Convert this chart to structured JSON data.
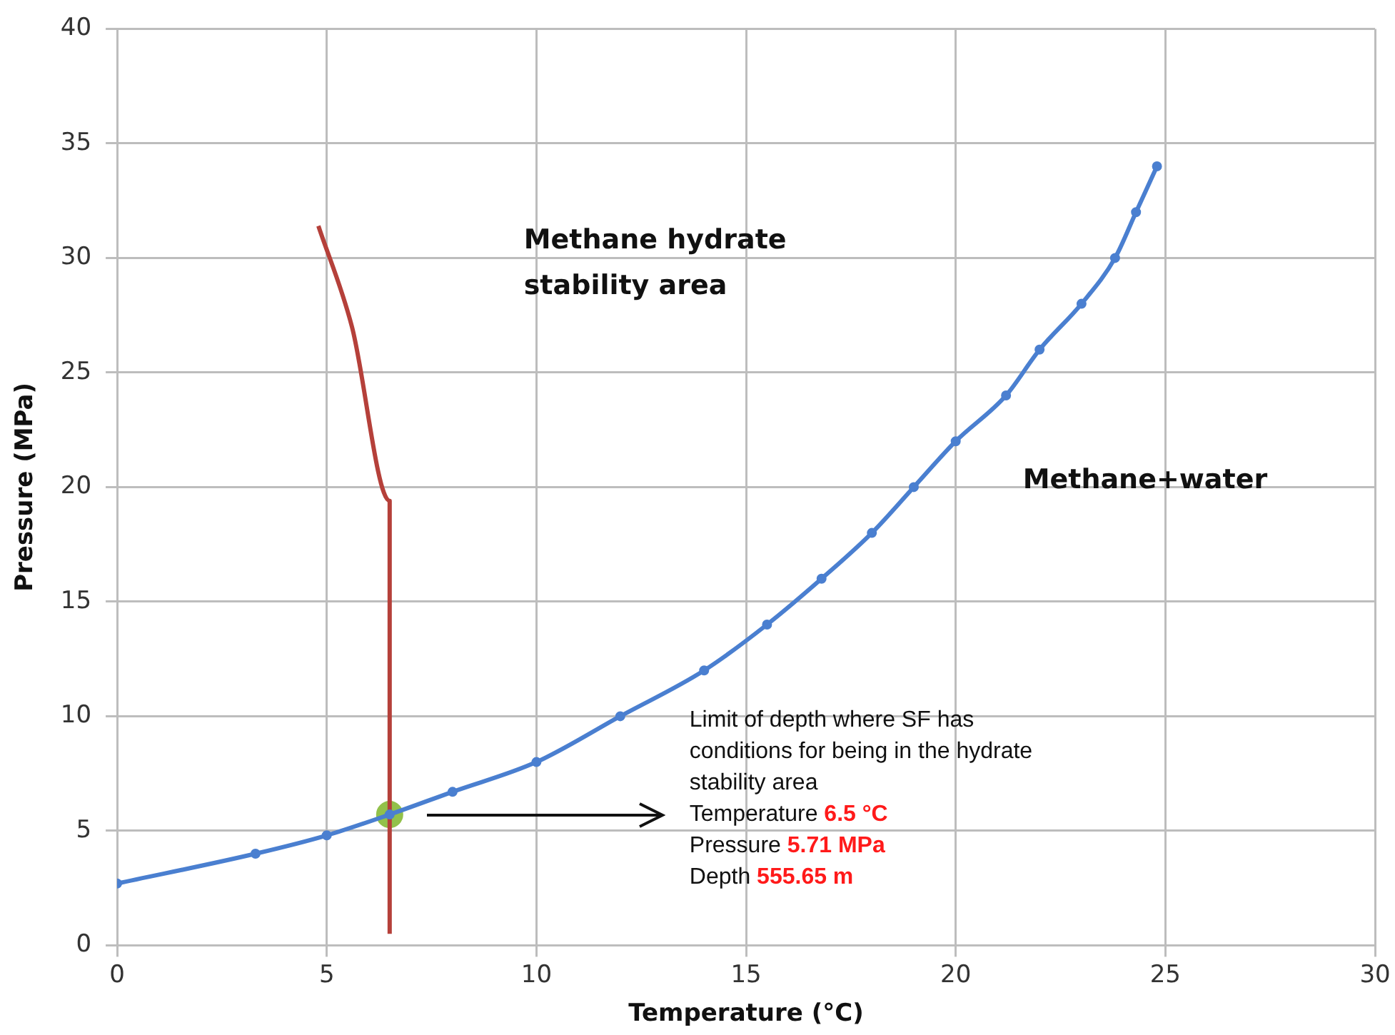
{
  "chart_data": {
    "type": "line",
    "xlabel": "Temperature (°C)",
    "ylabel": "Pressure (MPa)",
    "xlim": [
      0,
      30
    ],
    "xticks": [
      0,
      5,
      10,
      15,
      20,
      25,
      30
    ],
    "ylim": [
      0,
      40
    ],
    "yticks": [
      0,
      5,
      10,
      15,
      20,
      25,
      30,
      35,
      40
    ],
    "grid": true,
    "legend": false,
    "line_style": "solid",
    "series": [
      {
        "color": "#4a7fd0",
        "marker": "circle",
        "x": [
          0,
          3.3,
          5,
          6.5,
          8,
          10,
          12,
          14,
          15.5,
          16.8,
          18,
          19,
          20,
          21.2,
          22,
          23,
          23.8,
          24.3,
          24.8
        ],
        "values": [
          2.7,
          4,
          4.8,
          5.71,
          6.7,
          8,
          10,
          12,
          14,
          16,
          18,
          20,
          22,
          24,
          26,
          28,
          30,
          32,
          34
        ]
      },
      {
        "color": "#b5403a",
        "marker": "none",
        "x": [
          4.8,
          5.6,
          6.5,
          6.5
        ],
        "values": [
          31.4,
          27,
          19.4,
          0.5
        ]
      },
      {
        "type": "scatter",
        "color": "#92c14a",
        "marker": "circle",
        "x": [
          6.5
        ],
        "values": [
          5.71
        ]
      }
    ],
    "annotations": [
      "Methane hydrate stability area",
      "Methane+water",
      "Limit of depth where SF has conditions for being in the hydrate stability area",
      "Temperature 6.5 °C",
      "Pressure 5.71 MPa",
      "Depth 555.65 m"
    ]
  }
}
